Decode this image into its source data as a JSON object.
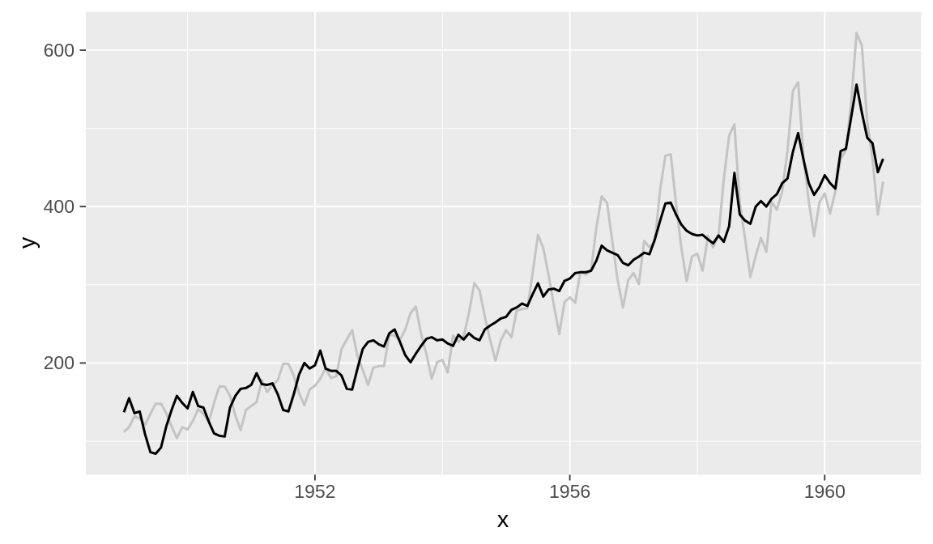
{
  "figure": {
    "background": "#ffffff"
  },
  "panel": {
    "background": "#ebebeb",
    "grid_color": "#ffffff"
  },
  "axis": {
    "tick_color": "#333333",
    "tick_label_color": "#4d4d4d",
    "title_color": "#000000"
  },
  "chart_data": {
    "type": "line",
    "title": "",
    "xlabel": "x",
    "ylabel": "y",
    "grid": true,
    "legend": "none",
    "x_start": 1949,
    "frequency": 12,
    "x_domain": [
      1949.0,
      1960.9167
    ],
    "y_domain": [
      84,
      622
    ],
    "x_ticks": [
      {
        "value": 1952,
        "label": "1952"
      },
      {
        "value": 1956,
        "label": "1956"
      },
      {
        "value": 1960,
        "label": "1960"
      }
    ],
    "x_minor": [
      1950,
      1954,
      1958
    ],
    "y_ticks": [
      {
        "value": 200,
        "label": "200"
      },
      {
        "value": 400,
        "label": "400"
      },
      {
        "value": 600,
        "label": "600"
      }
    ],
    "y_minor": [
      100,
      300,
      500
    ],
    "series": [
      {
        "name": "gray-series",
        "color": "#c4c4c4",
        "width": 3,
        "values": [
          112,
          118,
          132,
          129,
          121,
          135,
          148,
          148,
          136,
          119,
          104,
          118,
          115,
          126,
          141,
          135,
          125,
          149,
          170,
          170,
          158,
          133,
          114,
          140,
          145,
          150,
          178,
          163,
          172,
          178,
          199,
          199,
          184,
          162,
          146,
          166,
          171,
          180,
          193,
          181,
          183,
          218,
          230,
          242,
          209,
          191,
          172,
          194,
          196,
          196,
          236,
          235,
          229,
          243,
          264,
          272,
          237,
          211,
          180,
          201,
          204,
          188,
          235,
          227,
          234,
          264,
          302,
          293,
          259,
          229,
          203,
          229,
          242,
          233,
          267,
          269,
          270,
          315,
          364,
          347,
          312,
          274,
          237,
          278,
          284,
          277,
          317,
          313,
          318,
          374,
          413,
          405,
          355,
          306,
          271,
          306,
          315,
          301,
          356,
          348,
          355,
          422,
          465,
          467,
          404,
          347,
          305,
          336,
          340,
          318,
          362,
          348,
          363,
          435,
          491,
          505,
          404,
          359,
          310,
          337,
          360,
          342,
          406,
          396,
          420,
          472,
          548,
          559,
          463,
          407,
          362,
          405,
          417,
          391,
          419,
          461,
          472,
          535,
          622,
          606,
          508,
          461,
          390,
          432
        ]
      },
      {
        "name": "black-series",
        "color": "#000000",
        "width": 3,
        "values": [
          137,
          155,
          136,
          138,
          109,
          86,
          84,
          92,
          119,
          140,
          158,
          149,
          142,
          163,
          145,
          143,
          125,
          110,
          107,
          106,
          143,
          158,
          167,
          168,
          172,
          187,
          173,
          172,
          174,
          160,
          140,
          138,
          160,
          185,
          200,
          193,
          197,
          216,
          193,
          190,
          190,
          184,
          167,
          166,
          193,
          218,
          227,
          229,
          224,
          221,
          238,
          243,
          227,
          210,
          201,
          212,
          222,
          231,
          233,
          229,
          230,
          225,
          222,
          236,
          230,
          238,
          232,
          229,
          243,
          248,
          252,
          257,
          259,
          268,
          271,
          276,
          273,
          288,
          302,
          285,
          294,
          295,
          292,
          305,
          308,
          315,
          316,
          316,
          318,
          331,
          350,
          344,
          341,
          338,
          328,
          325,
          332,
          336,
          341,
          339,
          358,
          382,
          404,
          405,
          390,
          377,
          369,
          365,
          363,
          364,
          358,
          353,
          363,
          355,
          375,
          443,
          390,
          382,
          378,
          400,
          407,
          400,
          410,
          416,
          430,
          436,
          470,
          494,
          460,
          430,
          415,
          425,
          440,
          430,
          423,
          471,
          474,
          515,
          556,
          520,
          488,
          481,
          444,
          461
        ]
      }
    ]
  }
}
